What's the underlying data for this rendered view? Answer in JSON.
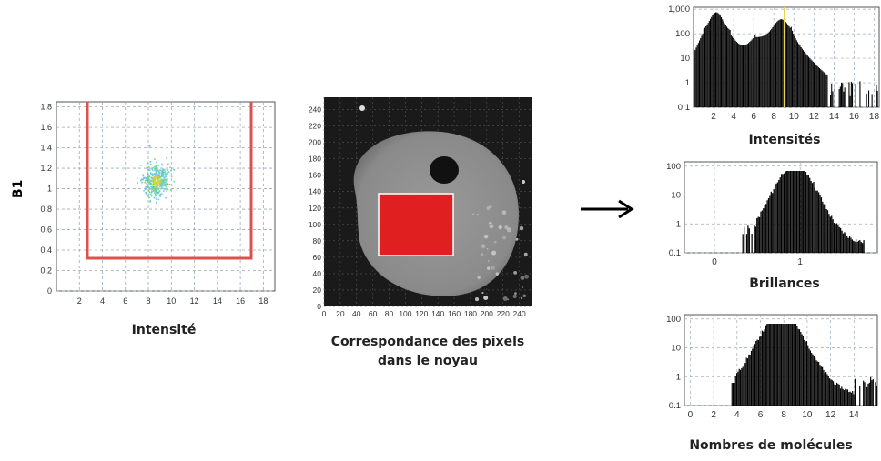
{
  "scatter": {
    "ylabel": "B1",
    "xlabel": "Intensité",
    "xticks": [
      "2",
      "4",
      "6",
      "8",
      "10",
      "12",
      "14",
      "16",
      "18"
    ],
    "yticks": [
      "0",
      "0.2",
      "0.4",
      "0.6",
      "0.8",
      "1",
      "1.2",
      "1.4",
      "1.6",
      "1.8"
    ],
    "gate_color": "#d9534f"
  },
  "image_panel": {
    "caption_line1": "Correspondance des pixels",
    "caption_line2": "dans le noyau",
    "xticks": [
      "0",
      "20",
      "40",
      "60",
      "80",
      "100",
      "120",
      "140",
      "160",
      "180",
      "200",
      "220",
      "240"
    ],
    "yticks": [
      "0",
      "20",
      "40",
      "60",
      "80",
      "100",
      "120",
      "140",
      "160",
      "180",
      "200",
      "220",
      "240"
    ],
    "roi_color": "#e02020"
  },
  "arrow": "→",
  "histograms": [
    {
      "caption": "Intensités",
      "yticks": [
        "0.1",
        "1",
        "10",
        "100",
        "1,000"
      ],
      "xticks": [
        "2",
        "4",
        "6",
        "8",
        "10",
        "12",
        "14",
        "16",
        "18"
      ],
      "marker_color": "#e8d44d"
    },
    {
      "caption": "Brillances",
      "yticks": [
        "0.1",
        "1",
        "10",
        "100"
      ],
      "xticks": [
        "0",
        "1"
      ]
    },
    {
      "caption": "Nombres de molécules",
      "yticks": [
        "0.1",
        "1",
        "10",
        "100"
      ],
      "xticks": [
        "0",
        "2",
        "4",
        "6",
        "8",
        "10",
        "12",
        "14"
      ]
    }
  ]
}
